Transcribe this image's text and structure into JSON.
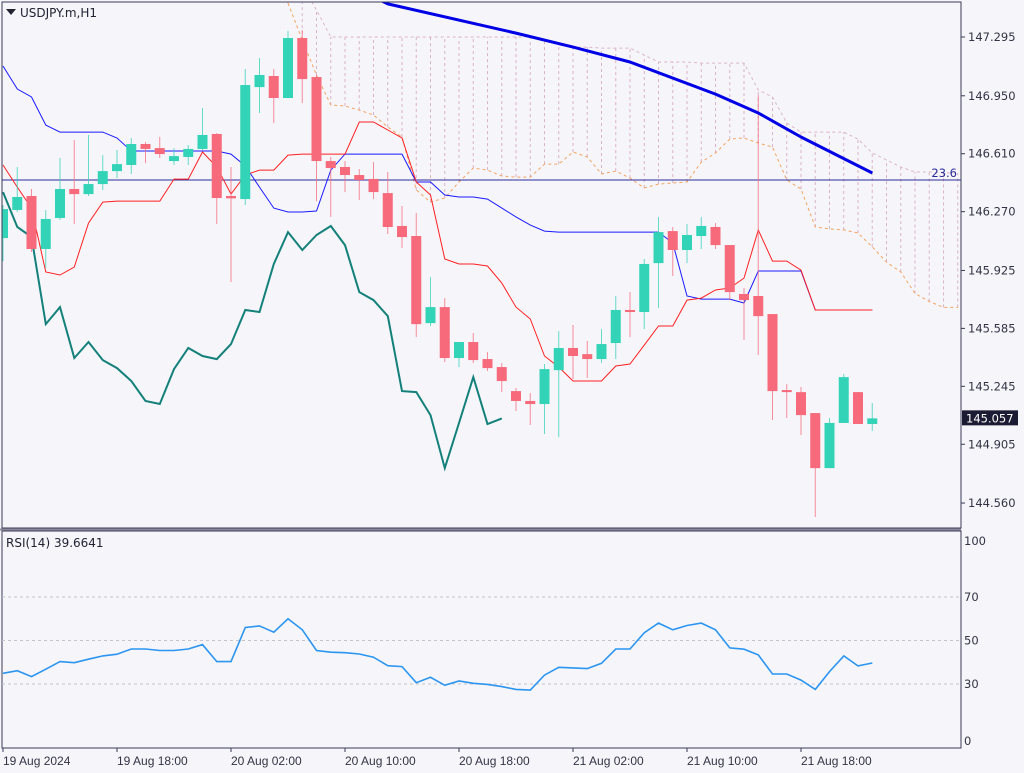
{
  "header": {
    "symbol_title": "USDJPY.m,H1",
    "menu_icon": "triangle-down-icon"
  },
  "rsi_panel": {
    "label": "RSI(14) 39.6641"
  },
  "current_price": {
    "label": "145.057",
    "value": 145.057
  },
  "colors": {
    "bull": "#33d3b7",
    "bear": "#f66a7b",
    "tenkan": "#ff2020",
    "kijun": "#1a1aff",
    "chikou": "#14807a",
    "ma": "#0000e6",
    "span_a": "#f4a460",
    "span_b": "#dcb8c4",
    "rsi": "#2b95f0",
    "fibo": "#2a2a9a",
    "background": "#f5f5fa",
    "price_tag_bg": "#1b1b33"
  },
  "chart_data": {
    "type": "candlestick",
    "title": "USDJPY.m,H1",
    "timeframe": "H1",
    "price_axis": {
      "range": [
        144.44,
        147.5
      ],
      "ticks": [
        "147.295",
        "146.950",
        "146.610",
        "146.270",
        "145.925",
        "145.585",
        "145.245",
        "144.905",
        "144.560"
      ]
    },
    "time_axis": {
      "labels": [
        {
          "bar": 0,
          "text": "19 Aug 2024"
        },
        {
          "bar": 8,
          "text": "19 Aug 18:00"
        },
        {
          "bar": 16,
          "text": "20 Aug 02:00"
        },
        {
          "bar": 24,
          "text": "20 Aug 10:00"
        },
        {
          "bar": 32,
          "text": "20 Aug 18:00"
        },
        {
          "bar": 40,
          "text": "21 Aug 02:00"
        },
        {
          "bar": 48,
          "text": "21 Aug 10:00"
        },
        {
          "bar": 56,
          "text": "21 Aug 18:00"
        }
      ]
    },
    "candles_ohlc": [
      [
        146.115,
        146.309,
        145.98,
        146.285
      ],
      [
        146.28,
        146.532,
        146.268,
        146.356
      ],
      [
        146.362,
        146.403,
        146.033,
        146.051
      ],
      [
        146.051,
        146.28,
        145.939,
        146.227
      ],
      [
        146.233,
        146.585,
        146.221,
        146.403
      ],
      [
        146.403,
        146.69,
        146.197,
        146.373
      ],
      [
        146.373,
        146.72,
        146.362,
        146.432
      ],
      [
        146.432,
        146.602,
        146.397,
        146.508
      ],
      [
        146.508,
        146.632,
        146.467,
        146.549
      ],
      [
        146.544,
        146.702,
        146.491,
        146.667
      ],
      [
        146.667,
        146.679,
        146.555,
        146.638
      ],
      [
        146.643,
        146.708,
        146.585,
        146.608
      ],
      [
        146.567,
        146.643,
        146.544,
        146.596
      ],
      [
        146.591,
        146.661,
        146.544,
        146.638
      ],
      [
        146.638,
        146.878,
        146.632,
        146.72
      ],
      [
        146.726,
        146.731,
        146.197,
        146.35
      ],
      [
        146.362,
        146.532,
        145.857,
        146.348
      ],
      [
        146.344,
        147.107,
        146.309,
        147.013
      ],
      [
        147.001,
        147.172,
        146.849,
        147.072
      ],
      [
        147.066,
        147.107,
        146.79,
        146.937
      ],
      [
        146.937,
        147.33,
        146.937,
        147.289
      ],
      [
        147.289,
        147.336,
        146.907,
        147.048
      ],
      [
        147.06,
        147.072,
        146.332,
        146.567
      ],
      [
        146.567,
        146.591,
        146.239,
        146.526
      ],
      [
        146.532,
        146.567,
        146.385,
        146.485
      ],
      [
        146.485,
        146.52,
        146.338,
        146.456
      ],
      [
        146.462,
        146.561,
        146.344,
        146.385
      ],
      [
        146.379,
        146.503,
        146.139,
        146.18
      ],
      [
        146.186,
        146.303,
        146.057,
        146.121
      ],
      [
        146.127,
        146.262,
        145.534,
        145.61
      ],
      [
        145.616,
        145.886,
        145.599,
        145.71
      ],
      [
        145.71,
        145.763,
        145.387,
        145.411
      ],
      [
        145.411,
        145.505,
        145.358,
        145.505
      ],
      [
        145.505,
        145.558,
        145.382,
        145.399
      ],
      [
        145.405,
        145.446,
        145.335,
        145.352
      ],
      [
        145.358,
        145.382,
        145.211,
        145.276
      ],
      [
        145.217,
        145.235,
        145.1,
        145.159
      ],
      [
        145.159,
        145.206,
        145.018,
        145.141
      ],
      [
        145.141,
        145.376,
        144.965,
        145.346
      ],
      [
        145.34,
        145.569,
        144.947,
        145.47
      ],
      [
        145.47,
        145.605,
        145.288,
        145.423
      ],
      [
        145.434,
        145.511,
        145.294,
        145.405
      ],
      [
        145.405,
        145.581,
        145.382,
        145.493
      ],
      [
        145.499,
        145.775,
        145.405,
        145.693
      ],
      [
        145.693,
        145.798,
        145.534,
        145.681
      ],
      [
        145.681,
        145.992,
        145.581,
        145.963
      ],
      [
        145.968,
        146.239,
        145.704,
        146.15
      ],
      [
        146.156,
        146.18,
        145.892,
        146.045
      ],
      [
        146.045,
        146.197,
        145.968,
        146.133
      ],
      [
        146.127,
        146.239,
        146.051,
        146.186
      ],
      [
        146.18,
        146.203,
        146.051,
        146.074
      ],
      [
        146.074,
        146.074,
        145.751,
        145.798
      ],
      [
        145.787,
        145.822,
        145.517,
        145.751
      ],
      [
        145.775,
        146.954,
        145.429,
        145.657
      ],
      [
        145.669,
        145.669,
        145.047,
        145.217
      ],
      [
        145.223,
        145.258,
        145.059,
        145.211
      ],
      [
        145.211,
        145.241,
        144.959,
        145.076
      ],
      [
        145.088,
        145.088,
        144.478,
        144.765
      ],
      [
        144.765,
        145.059,
        144.765,
        145.03
      ],
      [
        145.03,
        145.317,
        145.03,
        145.299
      ],
      [
        145.211,
        145.211,
        145.024,
        145.024
      ],
      [
        145.024,
        145.147,
        144.983,
        145.057
      ]
    ],
    "ichimoku": {
      "tenkan": [
        146.544,
        146.414,
        146.291,
        145.916,
        145.898,
        145.945,
        146.203,
        146.326,
        146.332,
        146.332,
        146.332,
        146.332,
        146.461,
        146.461,
        146.62,
        146.532,
        146.373,
        146.485,
        146.514,
        146.514,
        146.602,
        146.608,
        146.608,
        146.608,
        146.608,
        146.796,
        146.796,
        146.749,
        146.702,
        146.444,
        146.368,
        145.992,
        145.963,
        145.963,
        145.951,
        145.851,
        145.71,
        145.64,
        145.423,
        145.358,
        145.276,
        145.276,
        145.276,
        145.364,
        145.376,
        145.487,
        145.599,
        145.599,
        145.751,
        145.763,
        145.81,
        145.822,
        145.88,
        146.162,
        145.98,
        145.98,
        145.927,
        145.693,
        145.693,
        145.693,
        145.693,
        145.693
      ],
      "kijun": [
        147.125,
        146.99,
        146.943,
        146.778,
        146.737,
        146.737,
        146.737,
        146.737,
        146.702,
        146.626,
        146.626,
        146.626,
        146.626,
        146.626,
        146.626,
        146.626,
        146.608,
        146.538,
        146.414,
        146.291,
        146.268,
        146.268,
        146.274,
        146.514,
        146.608,
        146.608,
        146.608,
        146.608,
        146.608,
        146.444,
        146.444,
        146.368,
        146.356,
        146.356,
        146.344,
        146.291,
        146.239,
        146.191,
        146.156,
        146.15,
        146.15,
        146.15,
        146.15,
        146.15,
        146.15,
        146.15,
        146.15,
        146.086,
        145.775,
        145.757,
        145.757,
        145.757,
        145.734,
        145.922,
        145.922,
        145.922,
        145.922,
        145.693,
        145.693,
        145.693,
        145.693,
        145.693
      ],
      "chikou_shift": 26,
      "cloud_start_bar": 20,
      "senkou_a": [
        147.494,
        147.277,
        147.072,
        146.896,
        146.89,
        146.866,
        146.837,
        146.767,
        146.708,
        146.397,
        146.326,
        146.35,
        146.444,
        146.526,
        146.514,
        146.479,
        146.473,
        146.473,
        146.549,
        146.549,
        146.62,
        146.591,
        146.491,
        146.508,
        146.467,
        146.409,
        146.432,
        146.438,
        146.444,
        146.561,
        146.614,
        146.696,
        146.702,
        146.673,
        146.649,
        146.456,
        146.403,
        146.18,
        146.169,
        146.163,
        146.145,
        146.063,
        145.974,
        145.916,
        145.79,
        145.743,
        145.708,
        145.708
      ],
      "senkou_b": [
        147.747,
        147.6,
        147.453,
        147.295,
        147.295,
        147.295,
        147.295,
        147.295,
        147.295,
        147.295,
        147.295,
        147.295,
        147.295,
        147.295,
        147.295,
        147.295,
        147.295,
        147.295,
        147.277,
        147.248,
        147.236,
        147.236,
        147.23,
        147.23,
        147.23,
        147.189,
        147.148,
        147.148,
        147.148,
        147.142,
        147.142,
        147.142,
        147.142,
        146.984,
        146.943,
        146.79,
        146.737,
        146.737,
        146.737,
        146.737,
        146.696,
        146.614,
        146.573,
        146.532,
        146.503,
        146.503,
        146.497,
        146.497
      ]
    },
    "moving_average": [
      {
        "bar": 26,
        "value": 147.53
      },
      {
        "bar": 27,
        "value": 147.489
      },
      {
        "bar": 36,
        "value": 147.318
      },
      {
        "bar": 40,
        "value": 147.236
      },
      {
        "bar": 44,
        "value": 147.148
      },
      {
        "bar": 50,
        "value": 146.96
      },
      {
        "bar": 53,
        "value": 146.849
      },
      {
        "bar": 56,
        "value": 146.708
      },
      {
        "bar": 61,
        "value": 146.497
      }
    ],
    "fibo_level": {
      "label": "23.6",
      "price": 146.456
    },
    "rsi": {
      "period": 14,
      "last": 39.6641,
      "range": [
        0,
        100
      ],
      "levels": [
        30,
        50,
        70
      ],
      "ticks": [
        "100",
        "70",
        "50",
        "30",
        "0"
      ],
      "values": [
        34.9,
        36.1,
        33.4,
        36.8,
        40.3,
        39.8,
        41.4,
        42.9,
        43.7,
        46.1,
        46.1,
        45.4,
        45.4,
        46.1,
        48.1,
        40.3,
        40.3,
        56.0,
        56.7,
        53.8,
        60.0,
        54.9,
        45.4,
        44.6,
        44.4,
        43.8,
        42.3,
        38.4,
        38.0,
        30.6,
        33.1,
        29.4,
        31.4,
        30.3,
        29.8,
        28.8,
        27.5,
        27.2,
        34.1,
        37.7,
        37.4,
        37.1,
        39.5,
        46.1,
        46.1,
        53.6,
        58.0,
        54.9,
        56.9,
        58.0,
        54.9,
        46.6,
        46.0,
        43.4,
        34.6,
        34.6,
        31.8,
        27.5,
        35.7,
        42.9,
        38.3,
        39.66
      ]
    }
  }
}
